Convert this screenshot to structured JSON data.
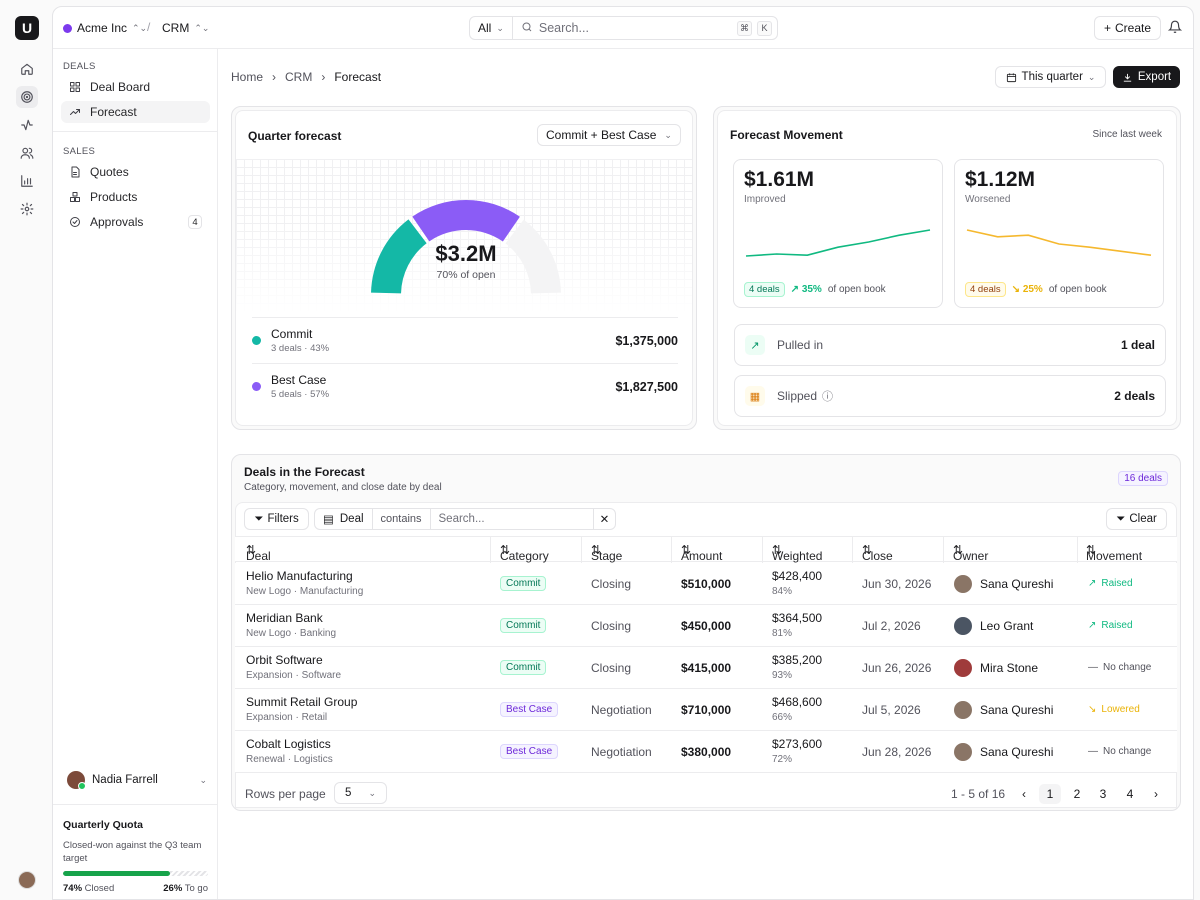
{
  "rail": {
    "logo": "U",
    "items": [
      "home-icon",
      "target-icon",
      "activity-icon",
      "users-icon",
      "bar-chart-icon",
      "gear-icon"
    ]
  },
  "topbar": {
    "org": "Acme Inc",
    "org_color": "#7c3aed",
    "app": "CRM",
    "search_scope": "All",
    "search_placeholder": "Search...",
    "kbd1": "⌘",
    "kbd2": "K",
    "create": "Create"
  },
  "sidebar": {
    "deals_header": "DEALS",
    "deal_board": "Deal Board",
    "forecast": "Forecast",
    "sales_header": "SALES",
    "quotes": "Quotes",
    "products": "Products",
    "approvals": "Approvals",
    "approvals_count": "4",
    "user_name": "Nadia Farrell",
    "quota_title": "Quarterly Quota",
    "quota_desc": "Closed-won against the Q3 team target",
    "quota_closed_pct": "74%",
    "quota_closed_label": "Closed",
    "quota_togo_pct": "26%",
    "quota_togo_label": "To go",
    "quota_progress": 0.74
  },
  "breadcrumb": {
    "home": "Home",
    "crm": "CRM",
    "current": "Forecast"
  },
  "header": {
    "period": "This quarter",
    "export": "Export"
  },
  "forecast": {
    "title": "Quarter forecast",
    "selector": "Commit + Best Case",
    "total": "$3.2M",
    "total_sub": "70% of open",
    "commit_share": 0.43,
    "best_share": 0.57,
    "gauge_fill": 0.7,
    "rows": [
      {
        "name": "Commit",
        "sub": "3 deals · 43%",
        "amount": "$1,375,000",
        "color": "#14b8a6"
      },
      {
        "name": "Best Case",
        "sub": "5 deals · 57%",
        "amount": "$1,827,500",
        "color": "#8b5cf6"
      }
    ]
  },
  "movement": {
    "title": "Forecast Movement",
    "since": "Since last week",
    "improved": {
      "value": "$1.61M",
      "label": "Improved",
      "deals": "4 deals",
      "pct": "35%",
      "suffix": "of open book",
      "color": "#10b981",
      "trend": [
        0.2,
        0.25,
        0.22,
        0.42,
        0.55,
        0.72,
        0.85
      ]
    },
    "worsened": {
      "value": "$1.12M",
      "label": "Worsened",
      "deals": "4 deals",
      "pct": "25%",
      "suffix": "of open book",
      "color": "#f5b82e",
      "trend": [
        0.85,
        0.68,
        0.72,
        0.5,
        0.42,
        0.32,
        0.22
      ]
    },
    "pulled_label": "Pulled in",
    "pulled_value": "1 deal",
    "slipped_label": "Slipped",
    "slipped_value": "2 deals"
  },
  "deals": {
    "title": "Deals in the Forecast",
    "subtitle": "Category, movement, and close date by deal",
    "badge": "16 deals",
    "filters": "Filters",
    "field": "Deal",
    "operator": "contains",
    "search_placeholder": "Search...",
    "clear": "Clear",
    "columns": [
      "Deal",
      "Category",
      "Stage",
      "Amount",
      "Weighted",
      "Close",
      "Owner",
      "Movement"
    ],
    "rows": [
      {
        "name": "Helio Manufacturing",
        "sub": "New Logo · Manufacturing",
        "category": "Commit",
        "stage": "Closing",
        "amount": "$510,000",
        "weighted": "$428,400",
        "weighted_pct": "84%",
        "close": "Jun 30, 2026",
        "owner": "Sana Qureshi",
        "movement": "Raised"
      },
      {
        "name": "Meridian Bank",
        "sub": "New Logo · Banking",
        "category": "Commit",
        "stage": "Closing",
        "amount": "$450,000",
        "weighted": "$364,500",
        "weighted_pct": "81%",
        "close": "Jul 2, 2026",
        "owner": "Leo Grant",
        "movement": "Raised"
      },
      {
        "name": "Orbit Software",
        "sub": "Expansion · Software",
        "category": "Commit",
        "stage": "Closing",
        "amount": "$415,000",
        "weighted": "$385,200",
        "weighted_pct": "93%",
        "close": "Jun 26, 2026",
        "owner": "Mira Stone",
        "movement": "No change"
      },
      {
        "name": "Summit Retail Group",
        "sub": "Expansion · Retail",
        "category": "Best Case",
        "stage": "Negotiation",
        "amount": "$710,000",
        "weighted": "$468,600",
        "weighted_pct": "66%",
        "close": "Jul 5, 2026",
        "owner": "Sana Qureshi",
        "movement": "Lowered"
      },
      {
        "name": "Cobalt Logistics",
        "sub": "Renewal · Logistics",
        "category": "Best Case",
        "stage": "Negotiation",
        "amount": "$380,000",
        "weighted": "$273,600",
        "weighted_pct": "72%",
        "close": "Jun 28, 2026",
        "owner": "Sana Qureshi",
        "movement": "No change"
      }
    ],
    "rows_per_page_label": "Rows per page",
    "rows_per_page": "5",
    "range": "1 - 5 of 16",
    "pages": [
      "1",
      "2",
      "3",
      "4"
    ]
  }
}
